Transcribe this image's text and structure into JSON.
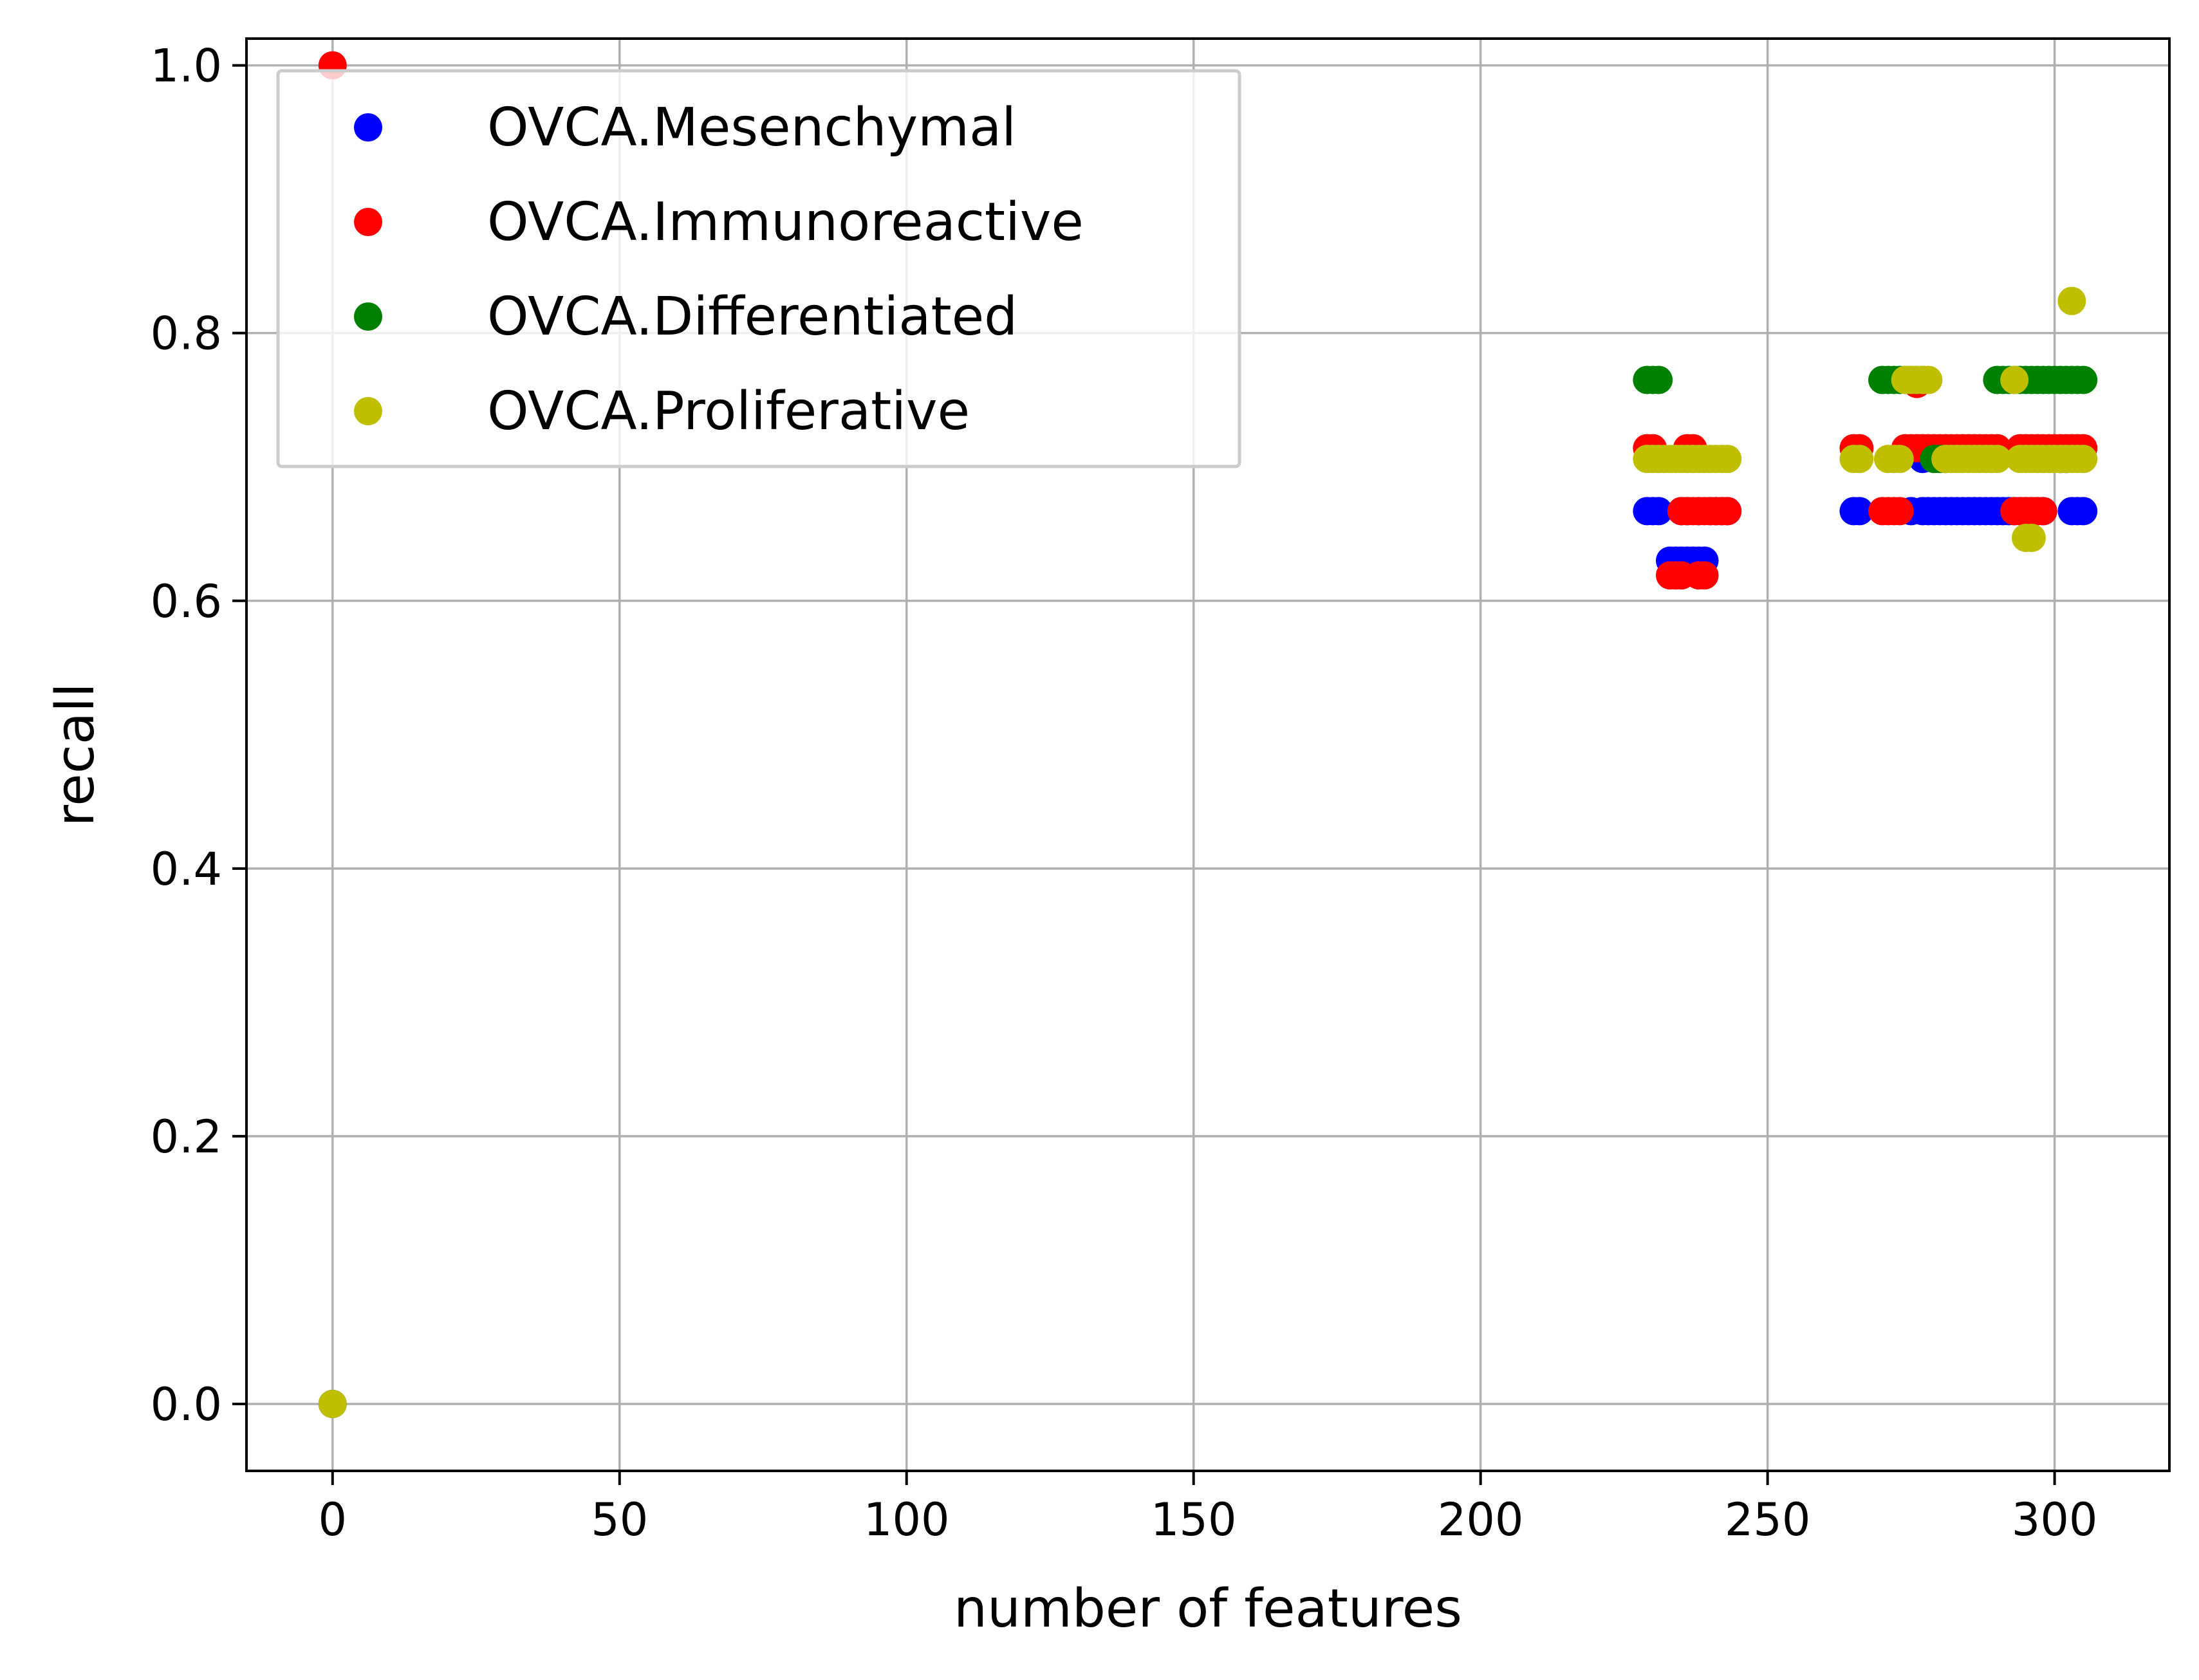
{
  "chart_data": {
    "type": "scatter",
    "title": "",
    "xlabel": "number of features",
    "ylabel": "recall",
    "xlim": [
      -15,
      320
    ],
    "ylim": [
      -0.05,
      1.02
    ],
    "xticks": [
      0,
      50,
      100,
      150,
      200,
      250,
      300
    ],
    "xtick_labels": [
      "0",
      "50",
      "100",
      "150",
      "200",
      "250",
      "300"
    ],
    "yticks": [
      0.0,
      0.2,
      0.4,
      0.6,
      0.8,
      1.0
    ],
    "ytick_labels": [
      "0.0",
      "0.2",
      "0.4",
      "0.6",
      "0.8",
      "1.0"
    ],
    "grid": true,
    "legend_position": "top-left",
    "series": [
      {
        "name": "OVCA.Mesenchymal",
        "color": "#0000ff",
        "points": [
          [
            0,
            0.0
          ],
          [
            229,
            0.667
          ],
          [
            230,
            0.667
          ],
          [
            231,
            0.667
          ],
          [
            233,
            0.63
          ],
          [
            234,
            0.63
          ],
          [
            235,
            0.63
          ],
          [
            236,
            0.63
          ],
          [
            237,
            0.63
          ],
          [
            238,
            0.63
          ],
          [
            239,
            0.63
          ],
          [
            235,
            0.667
          ],
          [
            236,
            0.667
          ],
          [
            238,
            0.667
          ],
          [
            240,
            0.667
          ],
          [
            241,
            0.667
          ],
          [
            242,
            0.667
          ],
          [
            243,
            0.667
          ],
          [
            265,
            0.667
          ],
          [
            266,
            0.667
          ],
          [
            275,
            0.667
          ],
          [
            277,
            0.667
          ],
          [
            278,
            0.667
          ],
          [
            279,
            0.667
          ],
          [
            280,
            0.667
          ],
          [
            281,
            0.667
          ],
          [
            282,
            0.667
          ],
          [
            283,
            0.667
          ],
          [
            284,
            0.667
          ],
          [
            285,
            0.667
          ],
          [
            286,
            0.667
          ],
          [
            287,
            0.667
          ],
          [
            288,
            0.667
          ],
          [
            289,
            0.667
          ],
          [
            290,
            0.667
          ],
          [
            291,
            0.667
          ],
          [
            292,
            0.667
          ],
          [
            293,
            0.667
          ],
          [
            294,
            0.667
          ],
          [
            295,
            0.667
          ],
          [
            296,
            0.667
          ],
          [
            297,
            0.667
          ],
          [
            298,
            0.667
          ],
          [
            303,
            0.667
          ],
          [
            304,
            0.667
          ],
          [
            305,
            0.667
          ],
          [
            277,
            0.706
          ],
          [
            301,
            0.706
          ],
          [
            302,
            0.706
          ]
        ]
      },
      {
        "name": "OVCA.Immunoreactive",
        "color": "#ff0000",
        "points": [
          [
            0,
            1.0
          ],
          [
            229,
            0.714
          ],
          [
            230,
            0.714
          ],
          [
            236,
            0.714
          ],
          [
            237,
            0.714
          ],
          [
            233,
            0.619
          ],
          [
            234,
            0.619
          ],
          [
            235,
            0.619
          ],
          [
            238,
            0.619
          ],
          [
            239,
            0.619
          ],
          [
            235,
            0.667
          ],
          [
            236,
            0.667
          ],
          [
            237,
            0.667
          ],
          [
            238,
            0.667
          ],
          [
            239,
            0.667
          ],
          [
            240,
            0.667
          ],
          [
            241,
            0.667
          ],
          [
            242,
            0.667
          ],
          [
            243,
            0.667
          ],
          [
            265,
            0.714
          ],
          [
            266,
            0.714
          ],
          [
            270,
            0.667
          ],
          [
            271,
            0.667
          ],
          [
            272,
            0.667
          ],
          [
            273,
            0.667
          ],
          [
            274,
            0.714
          ],
          [
            275,
            0.714
          ],
          [
            276,
            0.714
          ],
          [
            277,
            0.714
          ],
          [
            278,
            0.714
          ],
          [
            279,
            0.714
          ],
          [
            280,
            0.714
          ],
          [
            281,
            0.714
          ],
          [
            282,
            0.714
          ],
          [
            283,
            0.714
          ],
          [
            284,
            0.714
          ],
          [
            285,
            0.714
          ],
          [
            286,
            0.714
          ],
          [
            287,
            0.714
          ],
          [
            288,
            0.714
          ],
          [
            289,
            0.714
          ],
          [
            290,
            0.714
          ],
          [
            276,
            0.762
          ],
          [
            294,
            0.714
          ],
          [
            295,
            0.714
          ],
          [
            296,
            0.714
          ],
          [
            297,
            0.714
          ],
          [
            298,
            0.714
          ],
          [
            299,
            0.714
          ],
          [
            300,
            0.714
          ],
          [
            301,
            0.714
          ],
          [
            302,
            0.714
          ],
          [
            303,
            0.714
          ],
          [
            304,
            0.714
          ],
          [
            305,
            0.714
          ],
          [
            293,
            0.667
          ],
          [
            294,
            0.667
          ],
          [
            295,
            0.667
          ],
          [
            296,
            0.667
          ],
          [
            297,
            0.667
          ],
          [
            298,
            0.667
          ]
        ]
      },
      {
        "name": "OVCA.Differentiated",
        "color": "#008000",
        "points": [
          [
            0,
            0.0
          ],
          [
            229,
            0.765
          ],
          [
            230,
            0.765
          ],
          [
            231,
            0.765
          ],
          [
            270,
            0.765
          ],
          [
            271,
            0.765
          ],
          [
            272,
            0.765
          ],
          [
            273,
            0.765
          ],
          [
            274,
            0.765
          ],
          [
            275,
            0.765
          ],
          [
            276,
            0.765
          ],
          [
            277,
            0.765
          ],
          [
            279,
            0.706
          ],
          [
            280,
            0.706
          ],
          [
            281,
            0.706
          ],
          [
            290,
            0.765
          ],
          [
            291,
            0.765
          ],
          [
            292,
            0.765
          ],
          [
            293,
            0.765
          ],
          [
            294,
            0.765
          ],
          [
            295,
            0.765
          ],
          [
            296,
            0.765
          ],
          [
            297,
            0.765
          ],
          [
            298,
            0.765
          ],
          [
            299,
            0.765
          ],
          [
            300,
            0.765
          ],
          [
            301,
            0.765
          ],
          [
            302,
            0.765
          ],
          [
            303,
            0.765
          ],
          [
            304,
            0.765
          ],
          [
            305,
            0.765
          ]
        ]
      },
      {
        "name": "OVCA.Proliferative",
        "color": "#bfbf00",
        "points": [
          [
            0,
            0.0
          ],
          [
            229,
            0.706
          ],
          [
            230,
            0.706
          ],
          [
            231,
            0.706
          ],
          [
            232,
            0.706
          ],
          [
            233,
            0.706
          ],
          [
            234,
            0.706
          ],
          [
            235,
            0.706
          ],
          [
            236,
            0.706
          ],
          [
            237,
            0.706
          ],
          [
            238,
            0.706
          ],
          [
            239,
            0.706
          ],
          [
            240,
            0.706
          ],
          [
            241,
            0.706
          ],
          [
            242,
            0.706
          ],
          [
            243,
            0.706
          ],
          [
            265,
            0.706
          ],
          [
            266,
            0.706
          ],
          [
            271,
            0.706
          ],
          [
            272,
            0.706
          ],
          [
            273,
            0.706
          ],
          [
            274,
            0.765
          ],
          [
            275,
            0.765
          ],
          [
            276,
            0.765
          ],
          [
            277,
            0.765
          ],
          [
            278,
            0.765
          ],
          [
            281,
            0.706
          ],
          [
            282,
            0.706
          ],
          [
            283,
            0.706
          ],
          [
            284,
            0.706
          ],
          [
            285,
            0.706
          ],
          [
            286,
            0.706
          ],
          [
            287,
            0.706
          ],
          [
            288,
            0.706
          ],
          [
            289,
            0.706
          ],
          [
            290,
            0.706
          ],
          [
            293,
            0.765
          ],
          [
            295,
            0.647
          ],
          [
            296,
            0.647
          ],
          [
            294,
            0.706
          ],
          [
            295,
            0.706
          ],
          [
            296,
            0.706
          ],
          [
            297,
            0.706
          ],
          [
            298,
            0.706
          ],
          [
            299,
            0.706
          ],
          [
            300,
            0.706
          ],
          [
            301,
            0.706
          ],
          [
            302,
            0.706
          ],
          [
            303,
            0.706
          ],
          [
            304,
            0.706
          ],
          [
            305,
            0.706
          ],
          [
            303,
            0.824
          ]
        ]
      }
    ]
  }
}
